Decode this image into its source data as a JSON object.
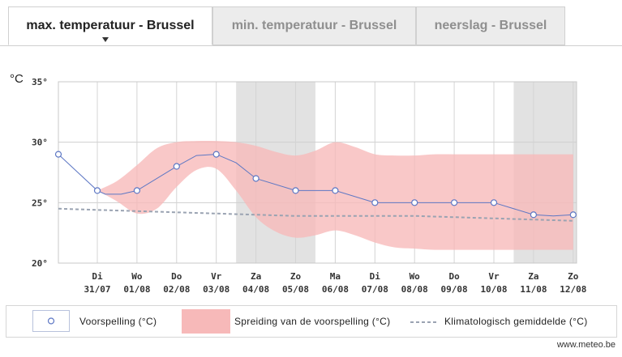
{
  "tabs": [
    {
      "label": "max. temperatuur - Brussel",
      "active": true
    },
    {
      "label": "min. temperatuur - Brussel",
      "active": false
    },
    {
      "label": "neerslag - Brussel",
      "active": false
    }
  ],
  "chart_data": {
    "type": "line",
    "unit_label": "°C",
    "ylim": [
      20,
      35
    ],
    "yticks": [
      {
        "value": 20,
        "label": "20°"
      },
      {
        "value": 25,
        "label": "25°"
      },
      {
        "value": 30,
        "label": "30°"
      },
      {
        "value": 35,
        "label": "35°"
      }
    ],
    "days": [
      {
        "day": "Di",
        "date": "31/07",
        "weekend": false
      },
      {
        "day": "Wo",
        "date": "01/08",
        "weekend": false
      },
      {
        "day": "Do",
        "date": "02/08",
        "weekend": false
      },
      {
        "day": "Vr",
        "date": "03/08",
        "weekend": false
      },
      {
        "day": "Za",
        "date": "04/08",
        "weekend": true
      },
      {
        "day": "Zo",
        "date": "05/08",
        "weekend": true
      },
      {
        "day": "Ma",
        "date": "06/08",
        "weekend": false
      },
      {
        "day": "Di",
        "date": "07/08",
        "weekend": false
      },
      {
        "day": "Wo",
        "date": "08/08",
        "weekend": false
      },
      {
        "day": "Do",
        "date": "09/08",
        "weekend": false
      },
      {
        "day": "Vr",
        "date": "10/08",
        "weekend": false
      },
      {
        "day": "Za",
        "date": "11/08",
        "weekend": true
      },
      {
        "day": "Zo",
        "date": "12/08",
        "weekend": true
      }
    ],
    "forecast": {
      "name": "Voorspelling (°C)",
      "color": "#5d77c4",
      "points": [
        {
          "x": -1,
          "y": 29.0
        },
        {
          "x": 0,
          "y": 26.0
        },
        {
          "x": 0.2,
          "y": 25.7
        },
        {
          "x": 0.6,
          "y": 25.7
        },
        {
          "x": 1,
          "y": 26.0
        },
        {
          "x": 2,
          "y": 28.0
        },
        {
          "x": 2.5,
          "y": 28.9
        },
        {
          "x": 3,
          "y": 29.0
        },
        {
          "x": 3.5,
          "y": 28.3
        },
        {
          "x": 4,
          "y": 27.0
        },
        {
          "x": 5,
          "y": 26.0
        },
        {
          "x": 6,
          "y": 26.0
        },
        {
          "x": 7,
          "y": 25.0
        },
        {
          "x": 8,
          "y": 25.0
        },
        {
          "x": 9,
          "y": 25.0
        },
        {
          "x": 10,
          "y": 25.0
        },
        {
          "x": 11,
          "y": 24.0
        },
        {
          "x": 11.5,
          "y": 23.9
        },
        {
          "x": 12,
          "y": 24.0
        }
      ],
      "markers": [
        {
          "x": -1,
          "y": 29.0
        },
        {
          "x": 0,
          "y": 26.0
        },
        {
          "x": 1,
          "y": 26.0
        },
        {
          "x": 2,
          "y": 28.0
        },
        {
          "x": 3,
          "y": 29.0
        },
        {
          "x": 4,
          "y": 27.0
        },
        {
          "x": 5,
          "y": 26.0
        },
        {
          "x": 6,
          "y": 26.0
        },
        {
          "x": 7,
          "y": 25.0
        },
        {
          "x": 8,
          "y": 25.0
        },
        {
          "x": 9,
          "y": 25.0
        },
        {
          "x": 10,
          "y": 25.0
        },
        {
          "x": 11,
          "y": 24.0
        },
        {
          "x": 12,
          "y": 24.0
        }
      ]
    },
    "spread": {
      "name": "Spreiding van de voorspelling (°C)",
      "color": "#f7b9b9",
      "x": [
        0,
        0.5,
        1,
        1.5,
        2,
        2.5,
        3,
        3.5,
        4,
        4.5,
        5,
        5.5,
        6,
        6.5,
        7,
        7.5,
        8,
        8.5,
        9,
        9.5,
        10,
        10.5,
        11,
        11.5,
        12
      ],
      "high": [
        26.0,
        26.8,
        28.1,
        29.5,
        30.0,
        30.1,
        30.1,
        30.0,
        29.7,
        29.2,
        28.9,
        29.3,
        30.0,
        29.6,
        29.0,
        28.9,
        28.9,
        29.0,
        29.0,
        29.0,
        29.0,
        29.0,
        29.0,
        29.0,
        29.0
      ],
      "low": [
        26.0,
        25.1,
        24.1,
        24.5,
        26.3,
        27.7,
        27.8,
        26.0,
        23.8,
        22.6,
        22.1,
        22.3,
        22.7,
        22.3,
        21.7,
        21.3,
        21.2,
        21.1,
        21.1,
        21.1,
        21.1,
        21.1,
        21.1,
        21.1,
        21.1
      ]
    },
    "climate": {
      "name": "Klimatologisch gemiddelde (°C)",
      "color": "#9aa3b2",
      "x": [
        -1,
        0,
        1,
        2,
        3,
        4,
        5,
        6,
        7,
        8,
        9,
        10,
        11,
        12
      ],
      "y": [
        24.5,
        24.4,
        24.3,
        24.2,
        24.1,
        24.0,
        23.9,
        23.9,
        23.9,
        23.9,
        23.8,
        23.7,
        23.6,
        23.5
      ]
    },
    "weekend_shade_color": "#e2e2e2",
    "grid": true
  },
  "legend": {
    "forecast_label": "Voorspelling (°C)",
    "spread_label": "Spreiding van de voorspelling (°C)",
    "climate_label": "Klimatologisch gemiddelde (°C)"
  },
  "footer": "www.meteo.be"
}
